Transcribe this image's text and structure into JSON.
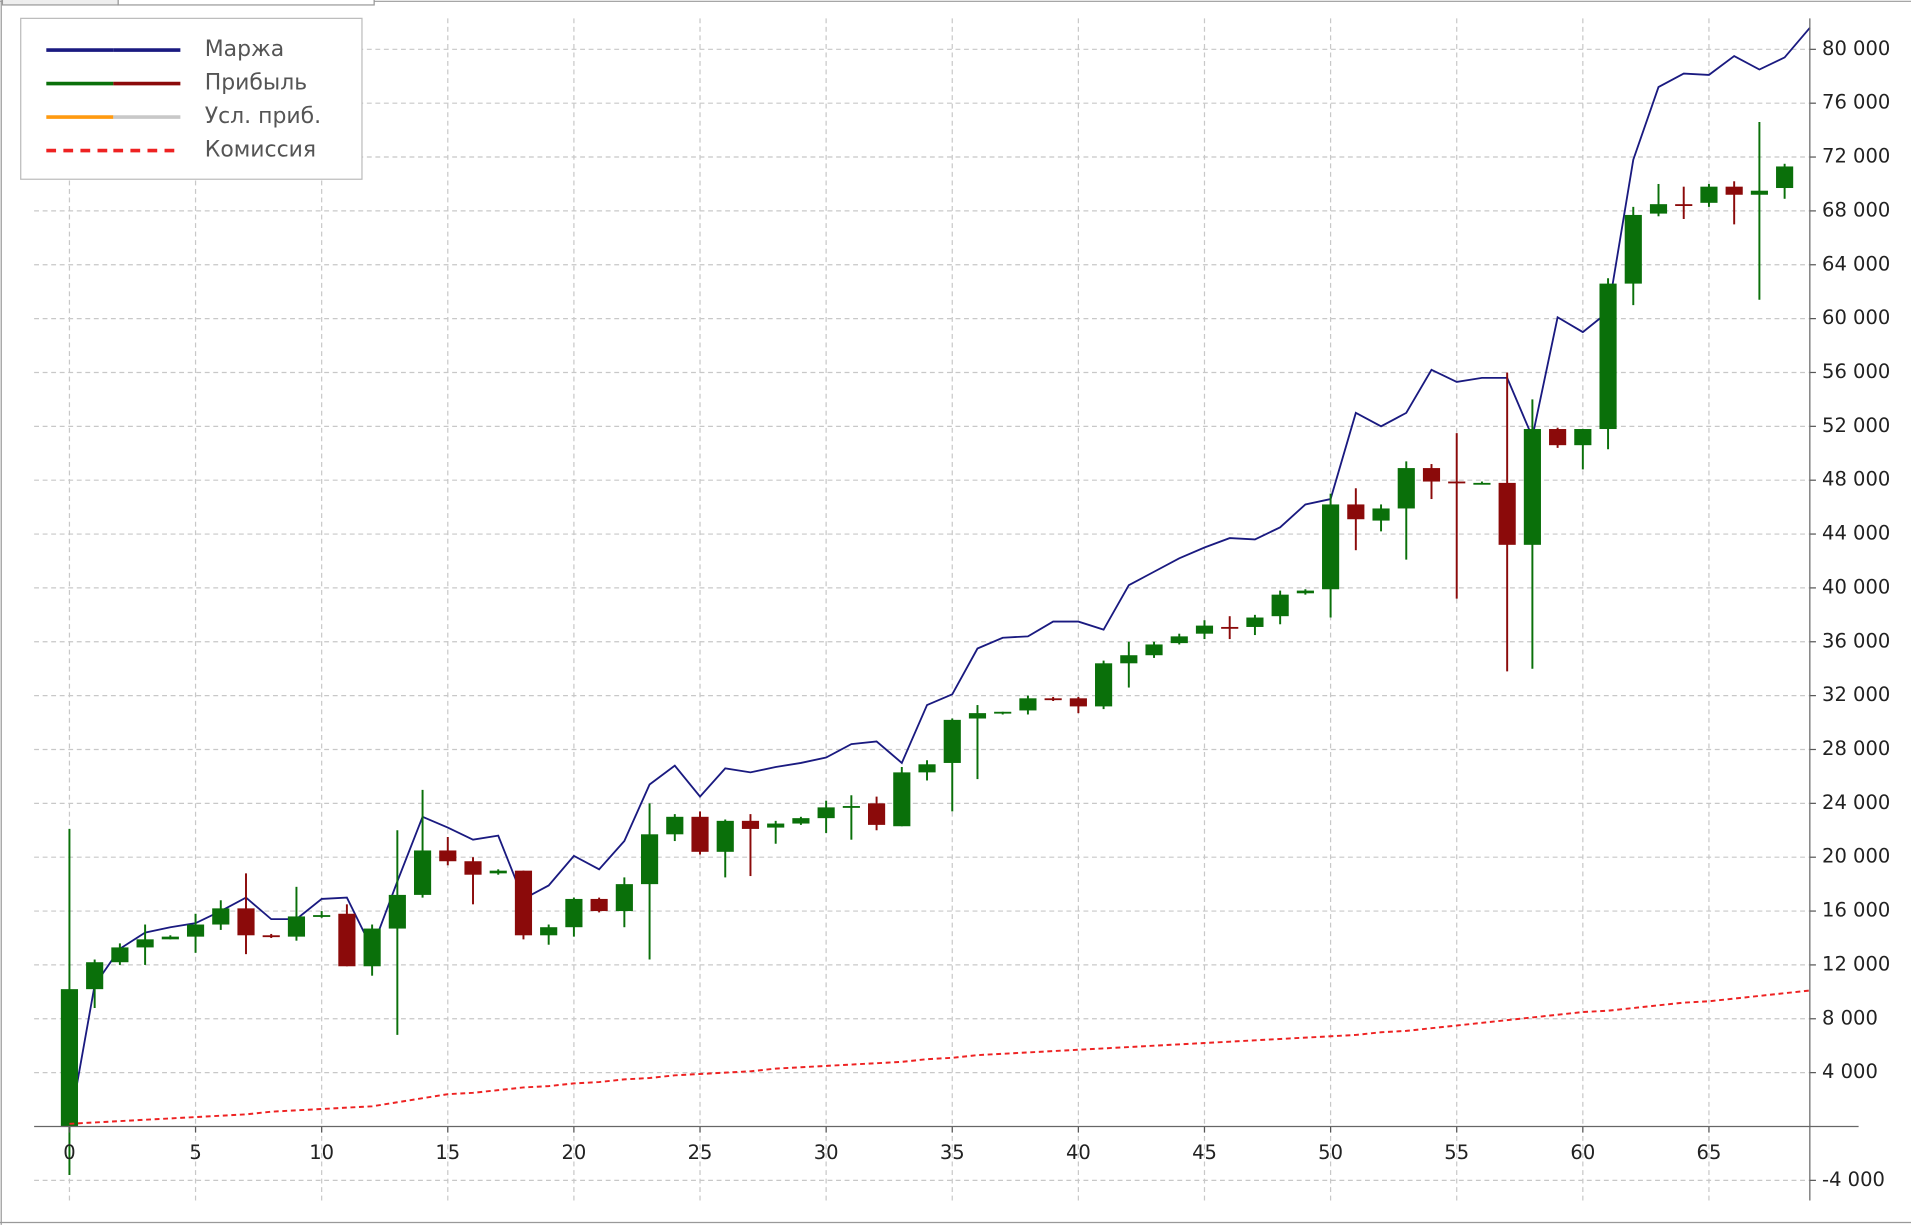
{
  "chart_data": {
    "type": "candlestick",
    "xlim": [
      -1.4,
      69
    ],
    "ylim": [
      -5500,
      82300
    ],
    "xticks": [
      0,
      5,
      10,
      15,
      20,
      25,
      30,
      35,
      40,
      45,
      50,
      55,
      60,
      65
    ],
    "yticks": [
      {
        "value": -4000,
        "label": "-4 000"
      },
      {
        "value": 4000,
        "label": "4 000"
      },
      {
        "value": 8000,
        "label": "8 000"
      },
      {
        "value": 12000,
        "label": "12 000"
      },
      {
        "value": 16000,
        "label": "16 000"
      },
      {
        "value": 20000,
        "label": "20 000"
      },
      {
        "value": 24000,
        "label": "24 000"
      },
      {
        "value": 28000,
        "label": "28 000"
      },
      {
        "value": 32000,
        "label": "32 000"
      },
      {
        "value": 36000,
        "label": "36 000"
      },
      {
        "value": 40000,
        "label": "40 000"
      },
      {
        "value": 44000,
        "label": "44 000"
      },
      {
        "value": 48000,
        "label": "48 000"
      },
      {
        "value": 52000,
        "label": "52 000"
      },
      {
        "value": 56000,
        "label": "56 000"
      },
      {
        "value": 60000,
        "label": "60 000"
      },
      {
        "value": 64000,
        "label": "64 000"
      },
      {
        "value": 68000,
        "label": "68 000"
      },
      {
        "value": 72000,
        "label": "72 000"
      },
      {
        "value": 76000,
        "label": "76 000"
      },
      {
        "value": 80000,
        "label": "80 000"
      }
    ],
    "grid": true,
    "legend": "upper left",
    "series": [
      {
        "name": "Маржа",
        "type": "line",
        "color": "#1a1a80",
        "values": [
          0,
          10500,
          13200,
          14400,
          14800,
          15100,
          16000,
          17000,
          15400,
          15400,
          16900,
          17000,
          13200,
          18200,
          23000,
          22200,
          21300,
          21600,
          16900,
          17900,
          20100,
          19100,
          21200,
          25400,
          26800,
          24500,
          26600,
          26300,
          26700,
          27000,
          27400,
          28400,
          28600,
          27000,
          31300,
          32100,
          35500,
          36300,
          36400,
          37500,
          37500,
          36900,
          40200,
          41200,
          42200,
          43000,
          43700,
          43600,
          44500,
          46200,
          46600,
          53000,
          52000,
          53000,
          56200,
          55300,
          55600,
          55600,
          51200,
          60100,
          59000,
          60500,
          71800,
          77200,
          78200,
          78100,
          79500,
          78500,
          79400,
          81600
        ]
      },
      {
        "name": "Прибыль",
        "type": "candlestick",
        "up_color": "#0a700a",
        "down_color": "#8b0a0a",
        "open": [
          0,
          10200,
          12200,
          13300,
          13900,
          14100,
          15000,
          16200,
          14200,
          14100,
          15600,
          15800,
          11900,
          14700,
          17200,
          20500,
          19700,
          18800,
          19000,
          14200,
          14800,
          16900,
          16000,
          18000,
          21700,
          23000,
          20400,
          22700,
          22200,
          22500,
          22900,
          23700,
          24000,
          22300,
          26300,
          27000,
          30300,
          30700,
          30900,
          31800,
          31800,
          31200,
          34400,
          35000,
          35900,
          36600,
          37100,
          37100,
          37900,
          39600,
          39900,
          46200,
          45000,
          45900,
          48900,
          47900,
          47800,
          47800,
          43200,
          51800,
          50600,
          51800,
          62600,
          67800,
          68500,
          68600,
          69800,
          69200,
          69700
        ],
        "high": [
          22100,
          12400,
          13600,
          15000,
          14200,
          15800,
          16800,
          18800,
          14300,
          17800,
          16000,
          16500,
          15000,
          22000,
          25000,
          21500,
          20000,
          19100,
          19000,
          15000,
          17000,
          17000,
          18500,
          24000,
          23200,
          23400,
          22800,
          23200,
          22700,
          23000,
          24200,
          24600,
          24500,
          26700,
          27200,
          30300,
          31300,
          30800,
          32000,
          31900,
          31900,
          34600,
          36000,
          36000,
          36600,
          37600,
          37900,
          38000,
          39800,
          39900,
          47000,
          47400,
          46200,
          49400,
          49200,
          51500,
          47900,
          56000,
          54000,
          51900,
          51800,
          63000,
          68300,
          70000,
          69800,
          70000,
          70200,
          74600,
          71500
        ],
        "low": [
          -3600,
          8800,
          12000,
          12000,
          13900,
          12900,
          14600,
          12800,
          14000,
          13800,
          15500,
          11900,
          11200,
          6800,
          17000,
          19400,
          16500,
          18700,
          13900,
          13500,
          14100,
          15900,
          14800,
          12400,
          21200,
          20200,
          18500,
          18600,
          21000,
          22400,
          21800,
          21300,
          22000,
          22300,
          25700,
          23400,
          25800,
          30600,
          30600,
          31600,
          30700,
          31000,
          32600,
          34800,
          35800,
          36200,
          36200,
          36500,
          37300,
          39500,
          37800,
          42800,
          44200,
          42100,
          46600,
          39200,
          47700,
          33800,
          34000,
          50400,
          48800,
          50300,
          61000,
          67600,
          67400,
          68300,
          67000,
          61400,
          68900
        ],
        "close": [
          10200,
          12200,
          13300,
          13900,
          14100,
          15000,
          16200,
          14200,
          14100,
          15600,
          15700,
          11900,
          14700,
          17200,
          20500,
          19700,
          18700,
          19000,
          14200,
          14800,
          16900,
          16000,
          18000,
          21700,
          23000,
          20400,
          22700,
          22100,
          22500,
          22900,
          23700,
          23800,
          22400,
          26300,
          26900,
          30200,
          30700,
          30800,
          31800,
          31700,
          31200,
          34400,
          35000,
          35800,
          36400,
          37200,
          37000,
          37800,
          39500,
          39800,
          46200,
          45100,
          45900,
          48900,
          47900,
          47800,
          47800,
          43200,
          51800,
          50600,
          51800,
          62600,
          67700,
          68500,
          68400,
          69800,
          69200,
          69500,
          71300
        ]
      },
      {
        "name": "Усл. приб.",
        "type": "line",
        "color": "#ff9a10",
        "color2": "#c8c8c8"
      },
      {
        "name": "Комиссия",
        "type": "line",
        "color": "#ee2222",
        "dashed": true,
        "values": [
          200,
          300,
          400,
          500,
          600,
          700,
          800,
          900,
          1100,
          1200,
          1300,
          1400,
          1500,
          1800,
          2100,
          2400,
          2500,
          2700,
          2900,
          3000,
          3200,
          3300,
          3500,
          3600,
          3800,
          3900,
          4000,
          4100,
          4300,
          4400,
          4500,
          4600,
          4700,
          4800,
          5000,
          5100,
          5300,
          5400,
          5500,
          5600,
          5700,
          5800,
          5900,
          6000,
          6100,
          6200,
          6300,
          6400,
          6500,
          6600,
          6700,
          6800,
          7000,
          7100,
          7300,
          7500,
          7700,
          7900,
          8100,
          8300,
          8500,
          8600,
          8800,
          9000,
          9200,
          9300,
          9500,
          9700,
          9900,
          10100
        ]
      }
    ]
  }
}
